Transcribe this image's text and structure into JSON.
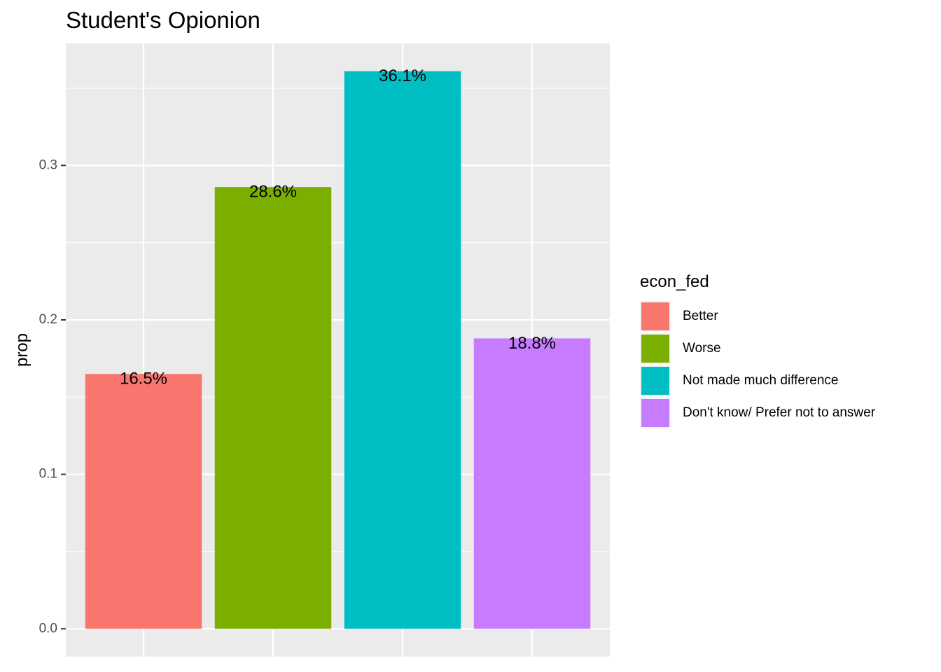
{
  "chart_data": {
    "type": "bar",
    "title": "Student's Opionion",
    "xlabel": "",
    "ylabel": "prop",
    "ylim": [
      -0.018,
      0.379
    ],
    "yticks": [
      0.0,
      0.1,
      0.2,
      0.3
    ],
    "ytick_labels": [
      "0.0",
      "0.1",
      "0.2",
      "0.3"
    ],
    "grid": true,
    "legend_position": "right",
    "legend_title": "econ_fed",
    "categories": [
      "Better",
      "Worse",
      "Not made much difference",
      "Don't know/ Prefer not to answer"
    ],
    "values": [
      0.165,
      0.286,
      0.361,
      0.188
    ],
    "data_labels": [
      "16.5%",
      "28.6%",
      "36.1%",
      "18.8%"
    ],
    "colors": [
      "#F8766D",
      "#7CAE00",
      "#00BFC4",
      "#C77CFF"
    ],
    "panel_background": "#EBEBEB",
    "grid_color": "#FFFFFF"
  }
}
